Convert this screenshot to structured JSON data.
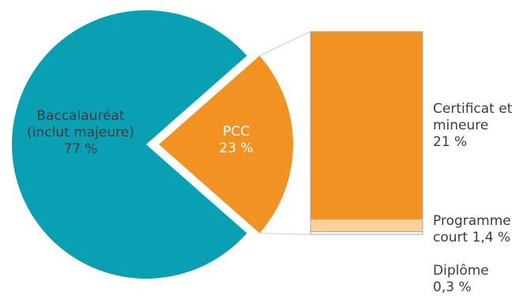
{
  "chart_data": {
    "type": "pie",
    "title": "",
    "pie": {
      "slices": [
        {
          "label_lines": [
            "Baccalauréat",
            "(inclut majeure)",
            "77 %"
          ],
          "value": 77,
          "color": "#0aa0b4"
        },
        {
          "label_lines": [
            "PCC",
            "23 %"
          ],
          "value": 23,
          "color": "#f29222",
          "exploded": true
        }
      ]
    },
    "breakdown_bar": {
      "of": "PCC",
      "segments": [
        {
          "label_lines": [
            "Certificat et",
            "mineure",
            "21 %"
          ],
          "value": 21,
          "color": "#f29222"
        },
        {
          "label_lines": [
            "Programme",
            "court 1,4 %"
          ],
          "value": 1.4,
          "color": "#fdd09a"
        },
        {
          "label_lines": [
            "Diplôme",
            "0,3 %"
          ],
          "value": 0.3,
          "color": "#ffffff"
        }
      ]
    }
  }
}
